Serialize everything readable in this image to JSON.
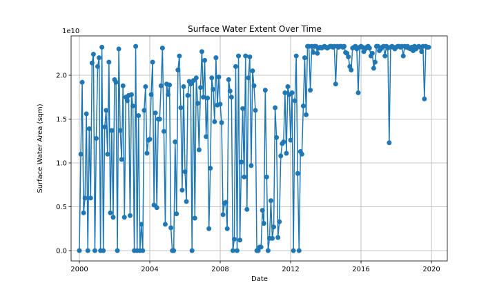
{
  "chart_data": {
    "type": "line",
    "title": "Surface Water Extent Over Time",
    "x_label": "Date",
    "y_label": "Surface Water Area (sqm)",
    "y_offset_label": "1e10",
    "xlim": [
      1999.53,
      2020.9
    ],
    "ylim": [
      -0.118,
      2.449
    ],
    "xticks": [
      2000,
      2004,
      2008,
      2012,
      2016,
      2020
    ],
    "yticks": [
      {
        "value": 0,
        "label": "0.0"
      },
      0.5,
      {
        "value": 1,
        "label": "1.0"
      },
      1.5,
      {
        "value": 2,
        "label": "2.0"
      }
    ],
    "grid": true,
    "marker": true,
    "series": [
      {
        "color": "#1f77b4",
        "x": [
          2000,
          2000.08,
          2000.16,
          2000.24,
          2000.32,
          2000.4,
          2000.48,
          2000.56,
          2000.64,
          2000.72,
          2000.8,
          2000.88,
          2000.96,
          2001.04,
          2001.12,
          2001.2,
          2001.28,
          2001.36,
          2001.44,
          2001.52,
          2001.6,
          2001.68,
          2001.76,
          2001.84,
          2001.92,
          2002,
          2002.08,
          2002.16,
          2002.24,
          2002.32,
          2002.4,
          2002.48,
          2002.56,
          2002.64,
          2002.72,
          2002.8,
          2002.88,
          2002.96,
          2003.04,
          2003.12,
          2003.2,
          2003.28,
          2003.36,
          2003.44,
          2003.52,
          2003.6,
          2003.68,
          2003.76,
          2003.84,
          2003.92,
          2004,
          2004.08,
          2004.16,
          2004.24,
          2004.32,
          2004.4,
          2004.48,
          2004.56,
          2004.64,
          2004.72,
          2004.8,
          2004.88,
          2004.96,
          2005.04,
          2005.12,
          2005.2,
          2005.28,
          2005.36,
          2005.44,
          2005.52,
          2005.6,
          2005.68,
          2005.76,
          2005.84,
          2005.92,
          2006,
          2006.08,
          2006.16,
          2006.24,
          2006.32,
          2006.4,
          2006.48,
          2006.56,
          2006.64,
          2006.72,
          2006.8,
          2006.88,
          2006.96,
          2007.04,
          2007.12,
          2007.2,
          2007.28,
          2007.36,
          2007.44,
          2007.52,
          2007.6,
          2007.68,
          2007.76,
          2007.84,
          2007.92,
          2008,
          2008.08,
          2008.16,
          2008.24,
          2008.32,
          2008.4,
          2008.48,
          2008.56,
          2008.64,
          2008.72,
          2008.8,
          2008.88,
          2008.96,
          2009.04,
          2009.12,
          2009.2,
          2009.28,
          2009.36,
          2009.44,
          2009.52,
          2009.6,
          2009.68,
          2009.76,
          2009.84,
          2009.92,
          2010,
          2010.08,
          2010.16,
          2010.24,
          2010.32,
          2010.4,
          2010.48,
          2010.56,
          2010.64,
          2010.72,
          2010.8,
          2010.88,
          2010.96,
          2011.04,
          2011.12,
          2011.2,
          2011.28,
          2011.36,
          2011.44,
          2011.52,
          2011.6,
          2011.68,
          2011.76,
          2011.84,
          2011.92,
          2012,
          2012.08,
          2012.16,
          2012.24,
          2012.32,
          2012.4,
          2012.48,
          2012.56,
          2012.64,
          2012.72,
          2012.8,
          2012.88,
          2012.96,
          2013.04,
          2013.12,
          2013.2,
          2013.28,
          2013.36,
          2013.44,
          2013.52,
          2013.6,
          2013.68,
          2013.76,
          2013.84,
          2013.92,
          2014,
          2014.08,
          2014.16,
          2014.24,
          2014.32,
          2014.4,
          2014.48,
          2014.56,
          2014.64,
          2014.72,
          2014.8,
          2014.88,
          2014.96,
          2015.04,
          2015.12,
          2015.2,
          2015.28,
          2015.36,
          2015.44,
          2015.52,
          2015.6,
          2015.68,
          2015.76,
          2015.84,
          2015.92,
          2016,
          2016.08,
          2016.16,
          2016.24,
          2016.32,
          2016.4,
          2016.48,
          2016.56,
          2016.64,
          2016.72,
          2016.8,
          2016.88,
          2016.96,
          2017.04,
          2017.12,
          2017.2,
          2017.28,
          2017.36,
          2017.44,
          2017.52,
          2017.6,
          2017.68,
          2017.76,
          2017.84,
          2017.92,
          2018,
          2018.08,
          2018.16,
          2018.24,
          2018.32,
          2018.4,
          2018.48,
          2018.56,
          2018.64,
          2018.72,
          2018.8,
          2018.88,
          2018.96,
          2019.04,
          2019.12,
          2019.2,
          2019.28,
          2019.36,
          2019.44,
          2019.52,
          2019.6,
          2019.68,
          2019.76,
          2019.84
        ],
        "values": [
          0,
          1.1,
          1.92,
          0.43,
          0.6,
          1.56,
          0,
          1.39,
          0.6,
          2.14,
          2.24,
          0,
          1.28,
          2.1,
          2.2,
          0,
          2.32,
          0,
          1.41,
          1.6,
          1.1,
          2.15,
          0.43,
          1.37,
          0.38,
          1.95,
          1.92,
          0,
          2.3,
          1.37,
          1.04,
          1.88,
          0.38,
          1.75,
          1.71,
          1.77,
          0.4,
          1.78,
          1.65,
          0,
          2.33,
          0,
          1.54,
          0,
          0.3,
          0,
          1.6,
          1.87,
          1.11,
          1.26,
          1.27,
          1.78,
          2.15,
          0.52,
          1.57,
          0.49,
          1.5,
          1.5,
          1.88,
          2.31,
          1.36,
          0.3,
          1.9,
          1.78,
          1.89,
          0.26,
          0,
          0,
          1.24,
          0.42,
          2.06,
          2.22,
          1.63,
          0.69,
          1.87,
          0.9,
          0.56,
          1.77,
          1.93,
          1.9,
          0,
          1.94,
          0.37,
          1.97,
          1.68,
          1.15,
          1.86,
          2.27,
          1.75,
          2.17,
          1.3,
          1.74,
          0.25,
          0.94,
          1.97,
          1.84,
          1.47,
          2.2,
          1.66,
          1.98,
          1.67,
          1.46,
          0.41,
          0.54,
          0.55,
          0.25,
          1.95,
          1.82,
          1.75,
          0,
          0.13,
          2.1,
          0,
          2.22,
          0.12,
          1.01,
          1.62,
          0.84,
          2.22,
          0.47,
          1.97,
          2.21,
          0.97,
          2.05,
          1.88,
          1.6,
          0,
          0,
          0.04,
          0.04,
          0.46,
          0.31,
          1.83,
          0.84,
          0,
          0.14,
          0.57,
          0.14,
          0.27,
          1.63,
          1.29,
          0.15,
          0.33,
          1.08,
          1.22,
          1.24,
          1.8,
          1.11,
          1.87,
          1.78,
          1.26,
          1.8,
          0,
          1.71,
          2.22,
          0.88,
          0,
          1.13,
          1.1,
          1.65,
          2.2,
          1.55,
          2.33,
          2.33,
          1.83,
          2.33,
          2.26,
          2.33,
          2.33,
          2.25,
          2.31,
          2.32,
          2.31,
          2.32,
          2.33,
          2.32,
          2.31,
          2.32,
          2.33,
          2.33,
          2.32,
          2.33,
          1.9,
          2.33,
          2.32,
          2.33,
          2.33,
          2.32,
          2.33,
          2.26,
          2.25,
          2.21,
          2.1,
          2.06,
          2.31,
          2.32,
          2.33,
          2.3,
          1.8,
          2.32,
          2.33,
          2.32,
          2.27,
          2.3,
          2.32,
          2.33,
          2.31,
          2.22,
          2.25,
          2.08,
          2.15,
          2.33,
          2.33,
          2.28,
          2.3,
          2.32,
          2.33,
          2.22,
          2.33,
          2.31,
          1.23,
          2.32,
          2.33,
          2.32,
          2.3,
          2.32,
          2.33,
          2.33,
          2.32,
          2.33,
          2.22,
          2.33,
          2.32,
          2.33,
          2.31,
          2.3,
          2.32,
          2.28,
          2.33,
          2.3,
          2.32,
          2.33,
          2.32,
          2.27,
          2.33,
          1.73,
          2.33,
          2.32,
          2.32
        ]
      }
    ]
  }
}
